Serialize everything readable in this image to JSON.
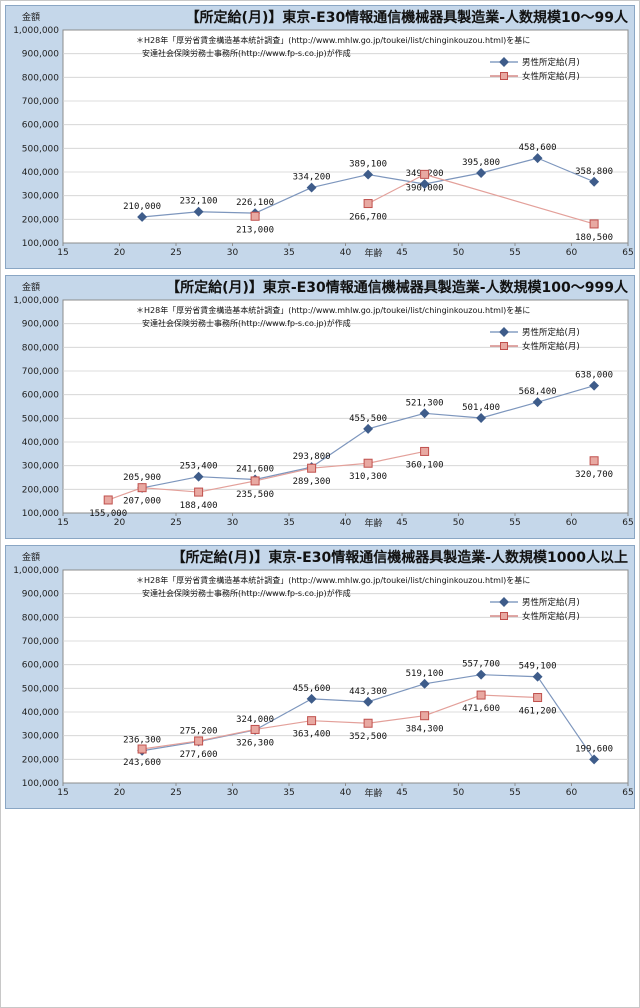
{
  "chart_data": [
    {
      "type": "line",
      "title": "【所定給(月)】東京-E30情報通信機械器具製造業-人数規模10～99人",
      "ylabel": "金額",
      "xlabel": "年齢",
      "note_line1": "＊H28年「厚労省賃金構造基本統計調査」(http://www.mhlw.go.jp/toukei/list/chinginkouzou.html)を基に",
      "note_line2": "安達社会保険労務士事務所(http://www.fp-s.co.jp)が作成",
      "xlim": [
        15,
        65
      ],
      "ylim": [
        100000,
        1000000
      ],
      "xticks": [
        "15",
        "20",
        "25",
        "30",
        "35",
        "40",
        "45",
        "50",
        "55",
        "60",
        "65"
      ],
      "yticks": [
        "100,000",
        "200,000",
        "300,000",
        "400,000",
        "500,000",
        "600,000",
        "700,000",
        "800,000",
        "900,000",
        "1,000,000"
      ],
      "legend_position": "right",
      "series": [
        {
          "name": "男性所定給(月)",
          "color": "#4a6fa5",
          "x": [
            22,
            27,
            32,
            37,
            42,
            47,
            52,
            57,
            62
          ],
          "y": [
            210000,
            232100,
            226100,
            334200,
            389100,
            349200,
            395800,
            458600,
            358800
          ],
          "labels": [
            "210,000",
            "232,100",
            "226,100",
            "334,200",
            "389,100",
            "349,200",
            "395,800",
            "458,600",
            "358,800"
          ],
          "label_pos": [
            "above",
            "above",
            "above",
            "above",
            "above",
            "above",
            "above",
            "above",
            "above"
          ]
        },
        {
          "name": "女性所定給(月)",
          "color": "#c0504d",
          "x": [
            32,
            42,
            47,
            62
          ],
          "y": [
            213000,
            266700,
            390000,
            180500
          ],
          "labels": [
            "213,000",
            "266,700",
            "390,000",
            "180,500"
          ],
          "label_pos": [
            "below",
            "below",
            "below",
            "below"
          ],
          "segments_break_after": [
            0
          ]
        }
      ]
    },
    {
      "type": "line",
      "title": "【所定給(月)】東京-E30情報通信機械器具製造業-人数規模100～999人",
      "ylabel": "金額",
      "xlabel": "年齢",
      "note_line1": "＊H28年「厚労省賃金構造基本統計調査」(http://www.mhlw.go.jp/toukei/list/chinginkouzou.html)を基に",
      "note_line2": "安達社会保険労務士事務所(http://www.fp-s.co.jp)が作成",
      "xlim": [
        15,
        65
      ],
      "ylim": [
        100000,
        1000000
      ],
      "xticks": [
        "15",
        "20",
        "25",
        "30",
        "35",
        "40",
        "45",
        "50",
        "55",
        "60",
        "65"
      ],
      "yticks": [
        "100,000",
        "200,000",
        "300,000",
        "400,000",
        "500,000",
        "600,000",
        "700,000",
        "800,000",
        "900,000",
        "1,000,000"
      ],
      "legend_position": "right",
      "series": [
        {
          "name": "男性所定給(月)",
          "color": "#4a6fa5",
          "x": [
            22,
            27,
            32,
            37,
            42,
            47,
            52,
            57,
            62
          ],
          "y": [
            205900,
            253400,
            241600,
            293800,
            455500,
            521300,
            501400,
            568400,
            638000
          ],
          "labels": [
            "205,900",
            "253,400",
            "241,600",
            "293,800",
            "455,500",
            "521,300",
            "501,400",
            "568,400",
            "638,000"
          ],
          "label_pos": [
            "above",
            "above",
            "above",
            "above",
            "above",
            "above",
            "above",
            "above",
            "above"
          ]
        },
        {
          "name": "女性所定給(月)",
          "color": "#c0504d",
          "x": [
            19,
            22,
            27,
            32,
            37,
            42,
            47,
            62
          ],
          "y": [
            155000,
            207000,
            188400,
            235500,
            289300,
            310300,
            360100,
            320700
          ],
          "labels": [
            "155,000",
            "207,000",
            "188,400",
            "235,500",
            "289,300",
            "310,300",
            "360,100",
            "320,700"
          ],
          "label_pos": [
            "below",
            "below",
            "below",
            "below",
            "below",
            "below",
            "below",
            "below"
          ],
          "segments_break_after": [
            6
          ]
        }
      ]
    },
    {
      "type": "line",
      "title": "【所定給(月)】東京-E30情報通信機械器具製造業-人数規模1000人以上",
      "ylabel": "金額",
      "xlabel": "年齢",
      "note_line1": "＊H28年「厚労省賃金構造基本統計調査」(http://www.mhlw.go.jp/toukei/list/chinginkouzou.html)を基に",
      "note_line2": "安達社会保険労務士事務所(http://www.fp-s.co.jp)が作成",
      "xlim": [
        15,
        65
      ],
      "ylim": [
        100000,
        1000000
      ],
      "xticks": [
        "15",
        "20",
        "25",
        "30",
        "35",
        "40",
        "45",
        "50",
        "55",
        "60",
        "65"
      ],
      "yticks": [
        "100,000",
        "200,000",
        "300,000",
        "400,000",
        "500,000",
        "600,000",
        "700,000",
        "800,000",
        "900,000",
        "1,000,000"
      ],
      "legend_position": "right",
      "series": [
        {
          "name": "男性所定給(月)",
          "color": "#4a6fa5",
          "x": [
            22,
            27,
            32,
            37,
            42,
            47,
            52,
            57,
            62
          ],
          "y": [
            236300,
            275200,
            324000,
            455600,
            443300,
            519100,
            557700,
            549100,
            199600
          ],
          "labels": [
            "236,300",
            "275,200",
            "324,000",
            "455,600",
            "443,300",
            "519,100",
            "557,700",
            "549,100",
            "199,600"
          ],
          "label_pos": [
            "above",
            "above",
            "above",
            "above",
            "above",
            "above",
            "above",
            "above",
            "above"
          ]
        },
        {
          "name": "女性所定給(月)",
          "color": "#c0504d",
          "x": [
            22,
            27,
            32,
            37,
            42,
            47,
            52,
            57
          ],
          "y": [
            243600,
            277600,
            326300,
            363400,
            352500,
            384300,
            471600,
            461200
          ],
          "labels": [
            "243,600",
            "277,600",
            "326,300",
            "363,400",
            "352,500",
            "384,300",
            "471,600",
            "461,200"
          ],
          "label_pos": [
            "below",
            "below",
            "below",
            "below",
            "below",
            "below",
            "below",
            "below"
          ],
          "segments_break_after": []
        }
      ]
    }
  ]
}
